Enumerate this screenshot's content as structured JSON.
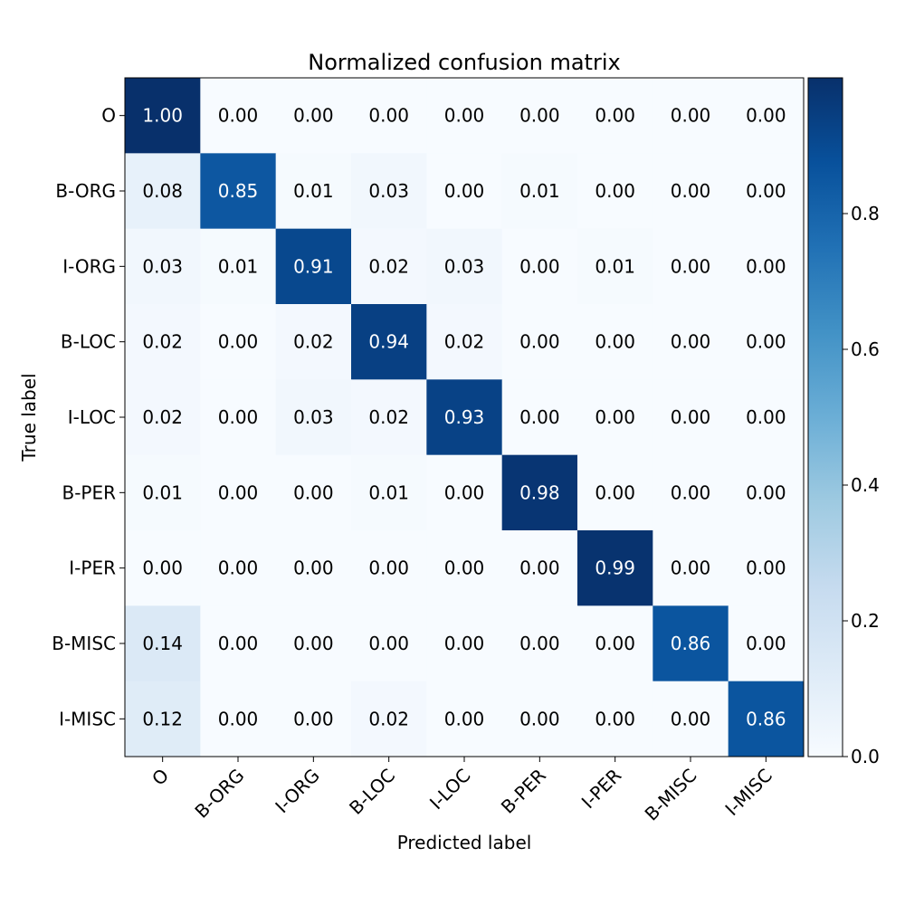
{
  "chart_data": {
    "type": "heatmap",
    "title": "Normalized confusion matrix",
    "xlabel": "Predicted label",
    "ylabel": "True label",
    "x_categories": [
      "O",
      "B-ORG",
      "I-ORG",
      "B-LOC",
      "I-LOC",
      "B-PER",
      "I-PER",
      "B-MISC",
      "I-MISC"
    ],
    "y_categories": [
      "O",
      "B-ORG",
      "I-ORG",
      "B-LOC",
      "I-LOC",
      "B-PER",
      "I-PER",
      "B-MISC",
      "I-MISC"
    ],
    "values": [
      [
        1.0,
        0.0,
        0.0,
        0.0,
        0.0,
        0.0,
        0.0,
        0.0,
        0.0
      ],
      [
        0.08,
        0.85,
        0.01,
        0.03,
        0.0,
        0.01,
        0.0,
        0.0,
        0.0
      ],
      [
        0.03,
        0.01,
        0.91,
        0.02,
        0.03,
        0.0,
        0.01,
        0.0,
        0.0
      ],
      [
        0.02,
        0.0,
        0.02,
        0.94,
        0.02,
        0.0,
        0.0,
        0.0,
        0.0
      ],
      [
        0.02,
        0.0,
        0.03,
        0.02,
        0.93,
        0.0,
        0.0,
        0.0,
        0.0
      ],
      [
        0.01,
        0.0,
        0.0,
        0.01,
        0.0,
        0.98,
        0.0,
        0.0,
        0.0
      ],
      [
        0.0,
        0.0,
        0.0,
        0.0,
        0.0,
        0.0,
        0.99,
        0.0,
        0.0
      ],
      [
        0.14,
        0.0,
        0.0,
        0.0,
        0.0,
        0.0,
        0.0,
        0.86,
        0.0
      ],
      [
        0.12,
        0.0,
        0.0,
        0.02,
        0.0,
        0.0,
        0.0,
        0.0,
        0.86
      ]
    ],
    "value_format": "0.00",
    "colormap": "Blues",
    "colormap_stops": [
      "#f7fbff",
      "#deebf7",
      "#c6dbef",
      "#9ecae1",
      "#6baed6",
      "#4292c6",
      "#2171b5",
      "#08519c",
      "#08306b"
    ],
    "color_range": [
      0,
      1.0
    ],
    "text_colors": {
      "dark_cell": "#ffffff",
      "light_cell": "#000000"
    },
    "colorbar": {
      "ticks": [
        "0.0",
        "0.2",
        "0.4",
        "0.6",
        "0.8"
      ],
      "tick_values": [
        0,
        0.2,
        0.4,
        0.6,
        0.8
      ]
    },
    "grid": false,
    "x_tick_rotation_deg": 45
  }
}
